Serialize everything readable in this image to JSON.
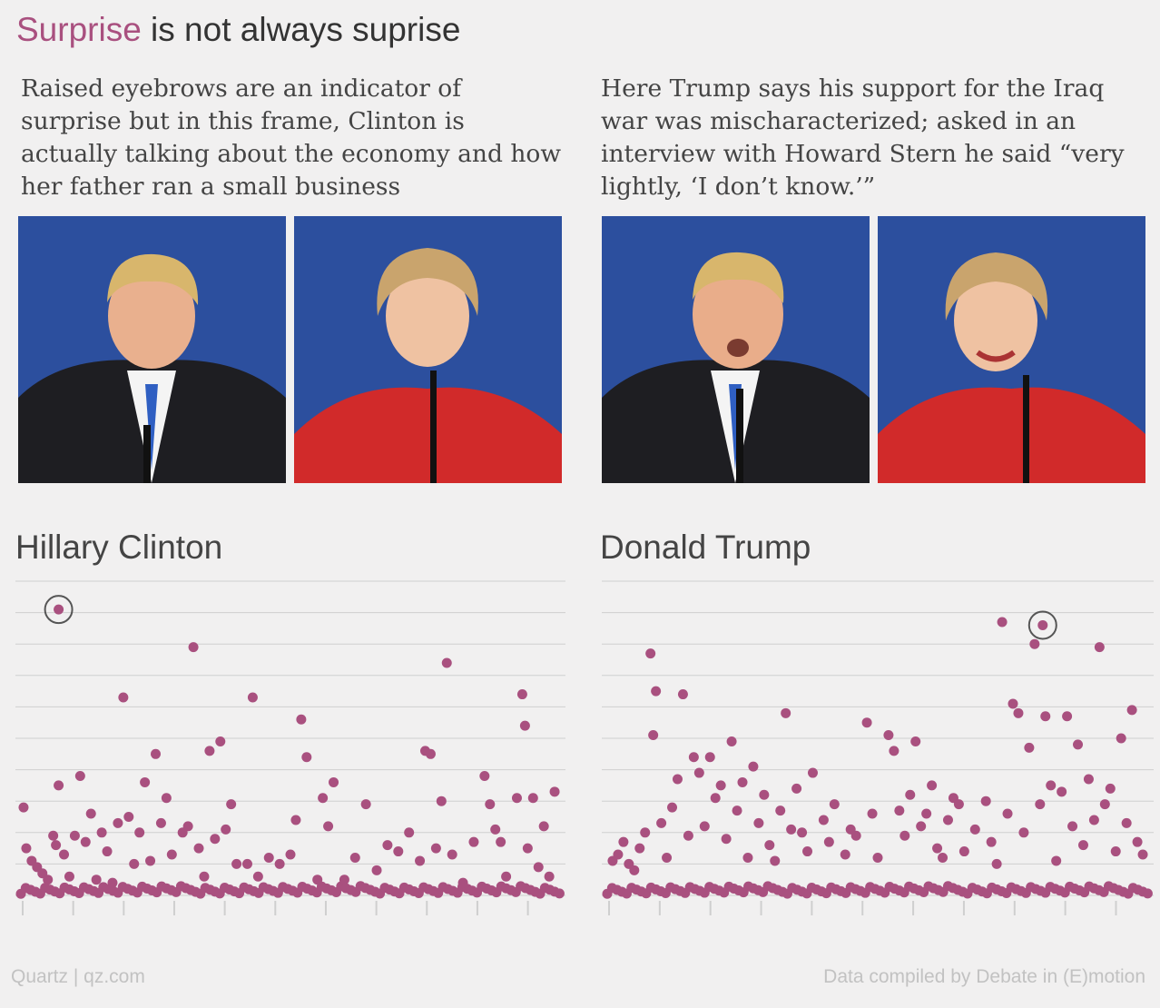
{
  "title": {
    "highlight": "Surprise",
    "rest": " is not always suprise"
  },
  "captions": {
    "left": "Raised eyebrows are an indicator of surprise but in this frame, Clinton is actually talking about the economy and how her father ran a small business",
    "right": "Here Trump says his support for the Iraq war was mischaracterized; asked in an interview with Howard Stern he said “very lightly, ‘I don’t know.’”"
  },
  "colors": {
    "accent": "#a9507f",
    "background": "#f1f0f0",
    "dot": "#a9507f",
    "grid": "#cfcfcf",
    "photo_backdrop": "#2c4f9e"
  },
  "chart_data": [
    {
      "type": "scatter",
      "title": "Hillary Clinton",
      "xlabel": "",
      "ylabel": "",
      "ylim": [
        0,
        10
      ],
      "xlim": [
        0,
        100
      ],
      "grid": true,
      "highlight": {
        "x": 7,
        "y": 9.1
      },
      "points": [
        [
          0.5,
          2.8
        ],
        [
          1,
          1.5
        ],
        [
          2,
          1.1
        ],
        [
          3,
          0.9
        ],
        [
          4,
          0.7
        ],
        [
          5,
          0.5
        ],
        [
          6,
          1.9
        ],
        [
          6.5,
          1.6
        ],
        [
          7,
          3.5
        ],
        [
          8,
          1.3
        ],
        [
          9,
          0.6
        ],
        [
          10,
          1.9
        ],
        [
          11,
          3.8
        ],
        [
          12,
          1.7
        ],
        [
          13,
          2.6
        ],
        [
          14,
          0.5
        ],
        [
          15,
          2.0
        ],
        [
          16,
          1.4
        ],
        [
          17,
          0.4
        ],
        [
          18,
          2.3
        ],
        [
          19,
          6.3
        ],
        [
          20,
          2.5
        ],
        [
          21,
          1.0
        ],
        [
          22,
          2.0
        ],
        [
          23,
          3.6
        ],
        [
          24,
          1.1
        ],
        [
          25,
          4.5
        ],
        [
          26,
          2.3
        ],
        [
          27,
          3.1
        ],
        [
          28,
          1.3
        ],
        [
          30,
          2.0
        ],
        [
          31,
          2.2
        ],
        [
          32,
          7.9
        ],
        [
          33,
          1.5
        ],
        [
          34,
          0.6
        ],
        [
          35,
          4.6
        ],
        [
          36,
          1.8
        ],
        [
          37,
          4.9
        ],
        [
          38,
          2.1
        ],
        [
          39,
          2.9
        ],
        [
          40,
          1.0
        ],
        [
          42,
          1.0
        ],
        [
          43,
          6.3
        ],
        [
          44,
          0.6
        ],
        [
          46,
          1.2
        ],
        [
          48,
          1.0
        ],
        [
          50,
          1.3
        ],
        [
          51,
          2.4
        ],
        [
          52,
          5.6
        ],
        [
          53,
          4.4
        ],
        [
          55,
          0.5
        ],
        [
          56,
          3.1
        ],
        [
          57,
          2.2
        ],
        [
          58,
          3.6
        ],
        [
          60,
          0.5
        ],
        [
          62,
          1.2
        ],
        [
          64,
          2.9
        ],
        [
          66,
          0.8
        ],
        [
          68,
          1.6
        ],
        [
          70,
          1.4
        ],
        [
          72,
          2.0
        ],
        [
          74,
          1.1
        ],
        [
          75,
          4.6
        ],
        [
          76,
          4.5
        ],
        [
          77,
          1.5
        ],
        [
          78,
          3.0
        ],
        [
          79,
          7.4
        ],
        [
          80,
          1.3
        ],
        [
          82,
          0.4
        ],
        [
          84,
          1.7
        ],
        [
          86,
          3.8
        ],
        [
          87,
          2.9
        ],
        [
          88,
          2.1
        ],
        [
          89,
          1.7
        ],
        [
          90,
          0.6
        ],
        [
          92,
          3.1
        ],
        [
          93,
          6.4
        ],
        [
          93.5,
          5.4
        ],
        [
          94,
          1.5
        ],
        [
          95,
          3.1
        ],
        [
          96,
          0.9
        ],
        [
          97,
          2.2
        ],
        [
          98,
          0.6
        ],
        [
          99,
          3.3
        ]
      ]
    },
    {
      "type": "scatter",
      "title": "Donald Trump",
      "xlabel": "",
      "ylabel": "",
      "ylim": [
        0,
        10
      ],
      "xlim": [
        0,
        100
      ],
      "grid": true,
      "highlight": {
        "x": 80.5,
        "y": 8.6
      },
      "points": [
        [
          1,
          1.1
        ],
        [
          2,
          1.3
        ],
        [
          3,
          1.7
        ],
        [
          4,
          1.0
        ],
        [
          5,
          0.8
        ],
        [
          6,
          1.5
        ],
        [
          7,
          2.0
        ],
        [
          8,
          7.7
        ],
        [
          8.5,
          5.1
        ],
        [
          9,
          6.5
        ],
        [
          10,
          2.3
        ],
        [
          11,
          1.2
        ],
        [
          12,
          2.8
        ],
        [
          13,
          3.7
        ],
        [
          14,
          6.4
        ],
        [
          15,
          1.9
        ],
        [
          16,
          4.4
        ],
        [
          17,
          3.9
        ],
        [
          18,
          2.2
        ],
        [
          19,
          4.4
        ],
        [
          20,
          3.1
        ],
        [
          21,
          3.5
        ],
        [
          22,
          1.8
        ],
        [
          23,
          4.9
        ],
        [
          24,
          2.7
        ],
        [
          25,
          3.6
        ],
        [
          26,
          1.2
        ],
        [
          27,
          4.1
        ],
        [
          28,
          2.3
        ],
        [
          29,
          3.2
        ],
        [
          30,
          1.6
        ],
        [
          31,
          1.1
        ],
        [
          32,
          2.7
        ],
        [
          33,
          5.8
        ],
        [
          34,
          2.1
        ],
        [
          35,
          3.4
        ],
        [
          36,
          2.0
        ],
        [
          37,
          1.4
        ],
        [
          38,
          3.9
        ],
        [
          40,
          2.4
        ],
        [
          41,
          1.7
        ],
        [
          42,
          2.9
        ],
        [
          44,
          1.3
        ],
        [
          45,
          2.1
        ],
        [
          46,
          1.9
        ],
        [
          48,
          5.5
        ],
        [
          49,
          2.6
        ],
        [
          50,
          1.2
        ],
        [
          52,
          5.1
        ],
        [
          53,
          4.6
        ],
        [
          54,
          2.7
        ],
        [
          55,
          1.9
        ],
        [
          56,
          3.2
        ],
        [
          57,
          4.9
        ],
        [
          58,
          2.2
        ],
        [
          59,
          2.6
        ],
        [
          60,
          3.5
        ],
        [
          61,
          1.5
        ],
        [
          62,
          1.2
        ],
        [
          63,
          2.4
        ],
        [
          64,
          3.1
        ],
        [
          65,
          2.9
        ],
        [
          66,
          1.4
        ],
        [
          68,
          2.1
        ],
        [
          70,
          3.0
        ],
        [
          71,
          1.7
        ],
        [
          72,
          1.0
        ],
        [
          73,
          8.7
        ],
        [
          74,
          2.6
        ],
        [
          75,
          6.1
        ],
        [
          76,
          5.8
        ],
        [
          77,
          2.0
        ],
        [
          78,
          4.7
        ],
        [
          79,
          8.0
        ],
        [
          80,
          2.9
        ],
        [
          81,
          5.7
        ],
        [
          82,
          3.5
        ],
        [
          83,
          1.1
        ],
        [
          84,
          3.3
        ],
        [
          85,
          5.7
        ],
        [
          86,
          2.2
        ],
        [
          87,
          4.8
        ],
        [
          88,
          1.6
        ],
        [
          89,
          3.7
        ],
        [
          90,
          2.4
        ],
        [
          91,
          7.9
        ],
        [
          92,
          2.9
        ],
        [
          93,
          3.4
        ],
        [
          94,
          1.4
        ],
        [
          95,
          5.0
        ],
        [
          96,
          2.3
        ],
        [
          97,
          5.9
        ],
        [
          98,
          1.7
        ],
        [
          99,
          1.3
        ]
      ]
    }
  ],
  "footer": {
    "left": "Quartz | qz.com",
    "right": "Data compiled by Debate in (E)motion"
  }
}
